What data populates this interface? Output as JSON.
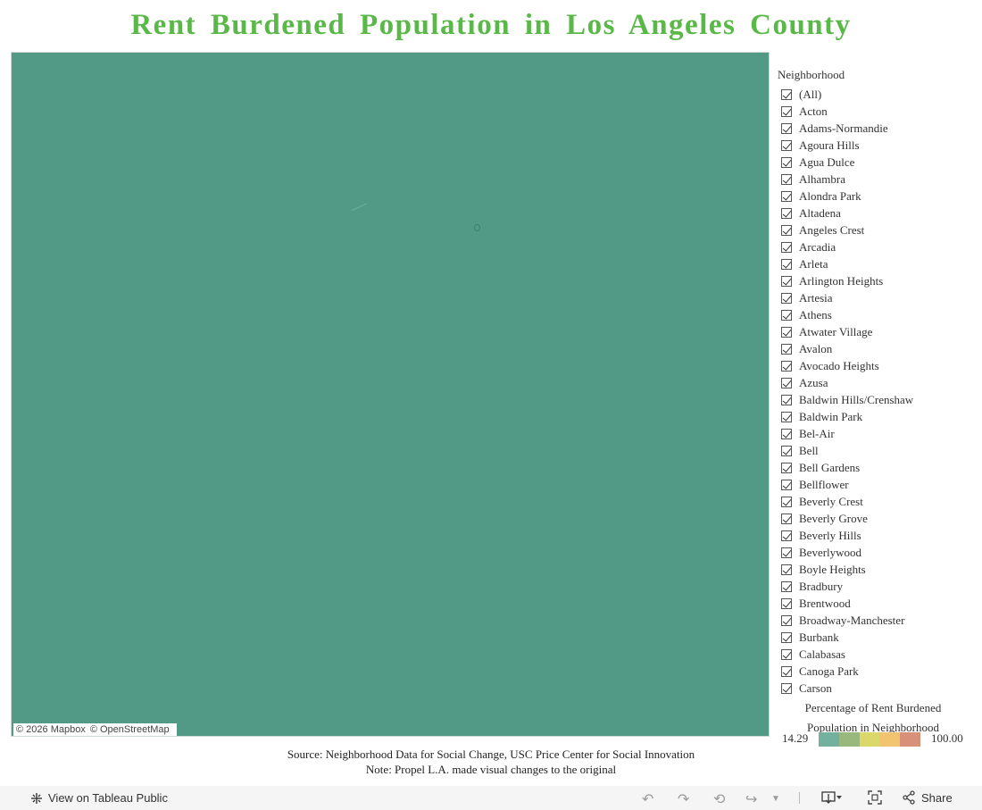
{
  "title": "Rent Burdened Population in Los Angeles County",
  "map": {
    "attribution_mapbox": "© 2026 Mapbox",
    "attribution_osm": "© OpenStreetMap",
    "fill_color": "#529a85"
  },
  "filter": {
    "title": "Neighborhood",
    "items": [
      "(All)",
      "Acton",
      "Adams-Normandie",
      "Agoura Hills",
      "Agua Dulce",
      "Alhambra",
      "Alondra Park",
      "Altadena",
      "Angeles Crest",
      "Arcadia",
      "Arleta",
      "Arlington Heights",
      "Artesia",
      "Athens",
      "Atwater Village",
      "Avalon",
      "Avocado Heights",
      "Azusa",
      "Baldwin Hills/Crenshaw",
      "Baldwin Park",
      "Bel-Air",
      "Bell",
      "Bell Gardens",
      "Bellflower",
      "Beverly Crest",
      "Beverly Grove",
      "Beverly Hills",
      "Beverlywood",
      "Boyle Heights",
      "Bradbury",
      "Brentwood",
      "Broadway-Manchester",
      "Burbank",
      "Calabasas",
      "Canoga Park",
      "Carson"
    ],
    "all_checked": true
  },
  "legend": {
    "title": "Percentage of Rent Burdened Population in Neighborhood",
    "min": "14.29",
    "max": "100.00",
    "colors": [
      "#74b09e",
      "#98b87e",
      "#dcd76a",
      "#f3c470",
      "#d9907a"
    ]
  },
  "footer": {
    "source": "Source: Neighborhood Data for Social Change, USC Price Center for Social Innovation",
    "note": "Note: Propel L.A. made visual changes to the original"
  },
  "toolbar": {
    "view_label": "View on Tableau Public",
    "share_label": "Share"
  }
}
